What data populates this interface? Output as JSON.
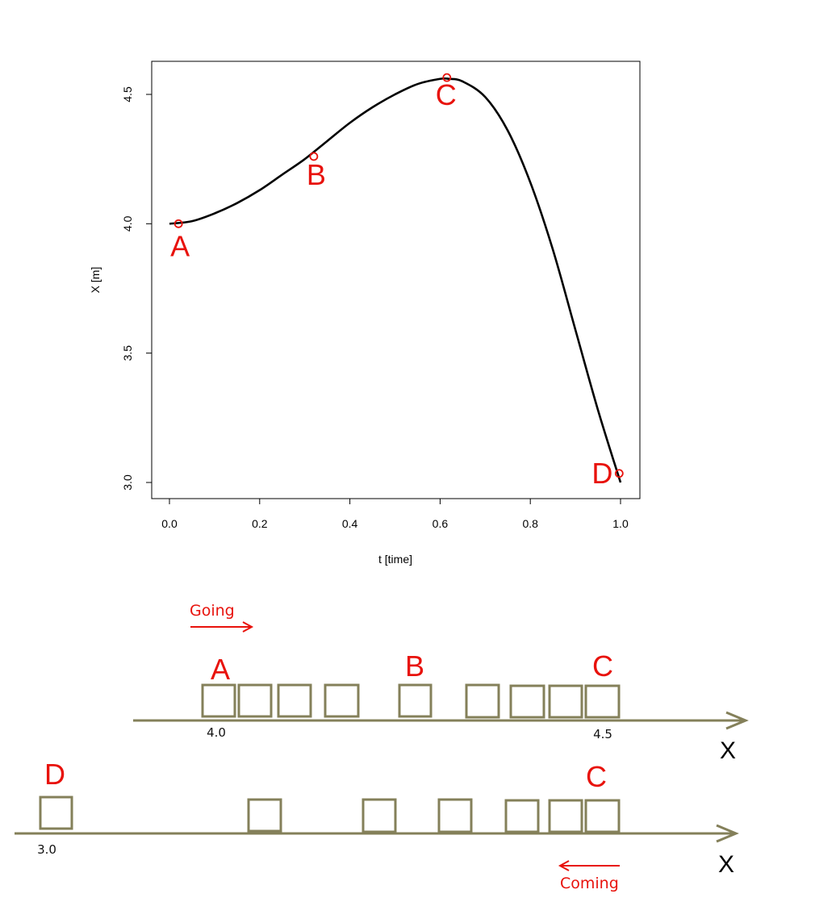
{
  "chart_data": {
    "type": "line",
    "xlabel": "t [time]",
    "ylabel": "X [m]",
    "xlim": [
      0.0,
      1.0
    ],
    "ylim": [
      3.0,
      4.5
    ],
    "x_ticks": [
      "0.0",
      "0.2",
      "0.4",
      "0.6",
      "0.8",
      "1.0"
    ],
    "y_ticks": [
      "3.0",
      "3.5",
      "4.0",
      "4.5"
    ],
    "grid": false,
    "series": [
      {
        "x": [
          0.0,
          0.05,
          0.1,
          0.15,
          0.2,
          0.25,
          0.3,
          0.35,
          0.4,
          0.45,
          0.5,
          0.55,
          0.6,
          0.62,
          0.65,
          0.7,
          0.75,
          0.8,
          0.85,
          0.9,
          0.95,
          1.0
        ],
        "y": [
          4.0,
          4.01,
          4.04,
          4.08,
          4.13,
          4.19,
          4.25,
          4.32,
          4.39,
          4.45,
          4.5,
          4.54,
          4.56,
          4.56,
          4.55,
          4.49,
          4.36,
          4.16,
          3.9,
          3.59,
          3.28,
          3.0
        ],
        "color": "#000000"
      }
    ],
    "points": [
      {
        "label": "A",
        "x": 0.02,
        "y": 4.0
      },
      {
        "label": "B",
        "x": 0.32,
        "y": 4.26
      },
      {
        "label": "C",
        "x": 0.615,
        "y": 4.565
      },
      {
        "label": "D",
        "x": 0.997,
        "y": 3.035
      }
    ],
    "marker_color": "#e8120c"
  },
  "diagram": {
    "going_label": "Going",
    "coming_label": "Coming",
    "row1": {
      "labels": [
        "A",
        "B",
        "C"
      ],
      "ticks": [
        "4.0",
        "4.5"
      ],
      "axis_label": "X"
    },
    "row2": {
      "labels": [
        "D",
        "C"
      ],
      "ticks": [
        "3.0"
      ],
      "axis_label": "X"
    },
    "accent_color": "#e8120c",
    "box_color": "#84805a"
  }
}
